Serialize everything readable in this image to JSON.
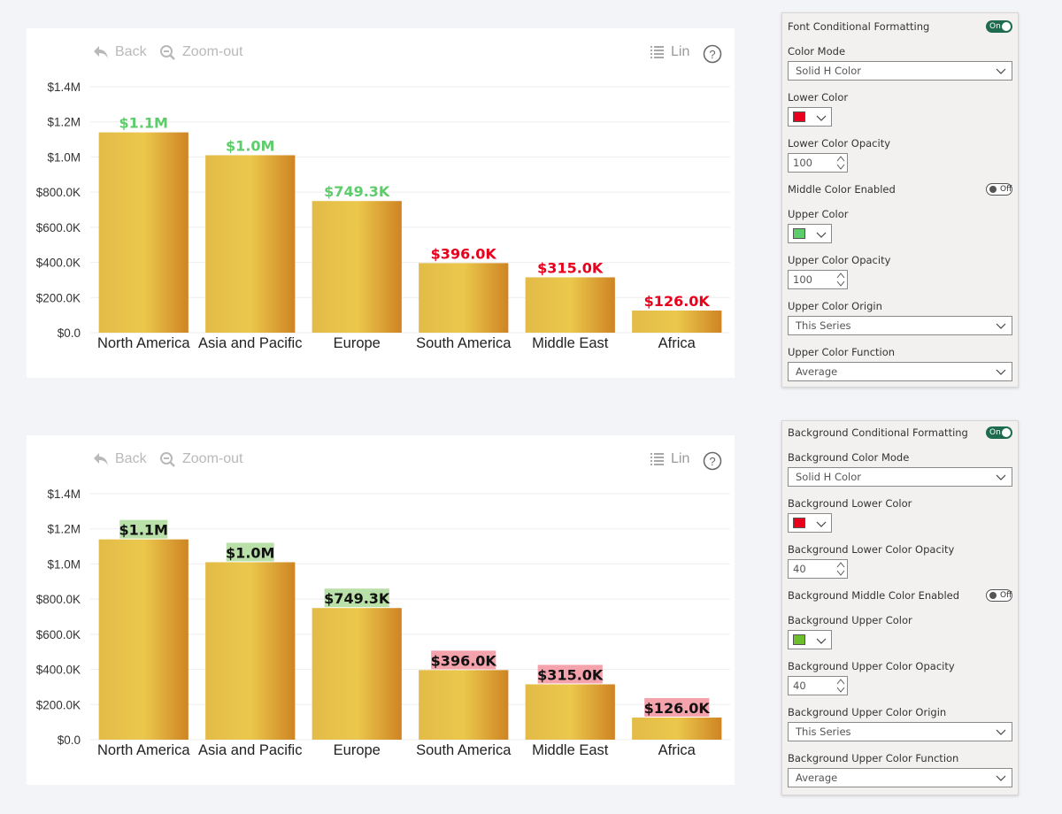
{
  "charts": [
    {
      "toolbar": {
        "back_label": "Back",
        "zoom_label": "Zoom-out",
        "lin_label": "Lin"
      },
      "label_style": "font",
      "chart_data": {
        "type": "bar",
        "categories": [
          "North America",
          "Asia and Pacific",
          "Europe",
          "South America",
          "Middle East",
          "Africa"
        ],
        "values": [
          1140000,
          1010000,
          749300,
          396000,
          315000,
          126000
        ],
        "data_labels": [
          "$1.1M",
          "$1.0M",
          "$749.3K",
          "$396.0K",
          "$315.0K",
          "$126.0K"
        ],
        "label_colors": [
          "#5dcc6a",
          "#5dcc6a",
          "#5dcc6a",
          "#e8001c",
          "#e8001c",
          "#e8001c"
        ],
        "ylim": [
          0,
          1400000
        ],
        "yticks": [
          0,
          200000,
          400000,
          600000,
          800000,
          1000000,
          1200000,
          1400000
        ],
        "ytick_labels": [
          "$0.0",
          "$200.0K",
          "$400.0K",
          "$600.0K",
          "$800.0K",
          "$1.0M",
          "$1.2M",
          "$1.4M"
        ],
        "grid": true
      }
    },
    {
      "toolbar": {
        "back_label": "Back",
        "zoom_label": "Zoom-out",
        "lin_label": "Lin"
      },
      "label_style": "background",
      "chart_data": {
        "type": "bar",
        "categories": [
          "North America",
          "Asia and Pacific",
          "Europe",
          "South America",
          "Middle East",
          "Africa"
        ],
        "values": [
          1140000,
          1010000,
          749300,
          396000,
          315000,
          126000
        ],
        "data_labels": [
          "$1.1M",
          "$1.0M",
          "$749.3K",
          "$396.0K",
          "$315.0K",
          "$126.0K"
        ],
        "label_colors": [
          "#b8e0a8",
          "#b8e0a8",
          "#b8e0a8",
          "#f4a3ad",
          "#f4a3ad",
          "#f4a3ad"
        ],
        "ylim": [
          0,
          1400000
        ],
        "yticks": [
          0,
          200000,
          400000,
          600000,
          800000,
          1000000,
          1200000,
          1400000
        ],
        "ytick_labels": [
          "$0.0",
          "$200.0K",
          "$400.0K",
          "$600.0K",
          "$800.0K",
          "$1.0M",
          "$1.2M",
          "$1.4M"
        ],
        "grid": true
      }
    }
  ],
  "font_panel": {
    "title": "Font Conditional Formatting",
    "title_toggle": "On",
    "color_mode_label": "Color Mode",
    "color_mode_value": "Solid H Color",
    "lower_color_label": "Lower Color",
    "lower_color": "#e8001c",
    "lower_opacity_label": "Lower Color Opacity",
    "lower_opacity_value": "100",
    "middle_enabled_label": "Middle Color Enabled",
    "middle_toggle": "Off",
    "upper_color_label": "Upper Color",
    "upper_color": "#5dcc6a",
    "upper_opacity_label": "Upper Color Opacity",
    "upper_opacity_value": "100",
    "upper_origin_label": "Upper Color Origin",
    "upper_origin_value": "This Series",
    "upper_function_label": "Upper Color Function",
    "upper_function_value": "Average"
  },
  "bg_panel": {
    "title": "Background Conditional Formatting",
    "title_toggle": "On",
    "color_mode_label": "Background Color Mode",
    "color_mode_value": "Solid H Color",
    "lower_color_label": "Background Lower Color",
    "lower_color": "#e8001c",
    "lower_opacity_label": "Background Lower Color Opacity",
    "lower_opacity_value": "40",
    "middle_enabled_label": "Background Middle Color Enabled",
    "middle_toggle": "Off",
    "upper_color_label": "Background Upper Color",
    "upper_color": "#6cbf2a",
    "upper_opacity_label": "Background Upper Color Opacity",
    "upper_opacity_value": "40",
    "upper_origin_label": "Background Upper Color Origin",
    "upper_origin_value": "This Series",
    "upper_function_label": "Background Upper Color Function",
    "upper_function_value": "Average"
  }
}
